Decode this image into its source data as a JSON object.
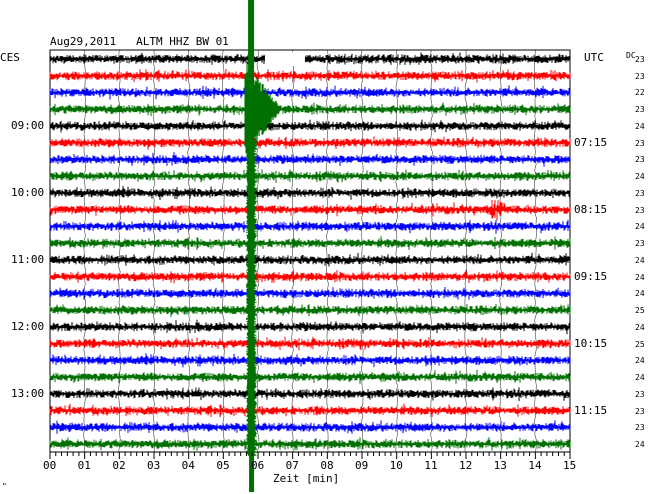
{
  "header": {
    "left_corner": "CES",
    "title": "Aug29,2011   ALTM HHZ BW 01",
    "right_corner": "UTC",
    "dc_label": "DC"
  },
  "footer": {
    "xlabel": "Zeit [min]",
    "corner_mark": "\""
  },
  "colors": {
    "trace_cycle": [
      "#000000",
      "#ff0000",
      "#0000ff",
      "#007000"
    ],
    "grid": "#000000",
    "background": "#ffffff"
  },
  "chart_data": {
    "type": "line",
    "title": "Aug29,2011   ALTM HHZ BW 01",
    "xlabel": "Zeit [min]",
    "xlim": [
      0,
      15
    ],
    "x_ticks": [
      "00",
      "01",
      "02",
      "03",
      "04",
      "05",
      "06",
      "07",
      "08",
      "09",
      "10",
      "11",
      "12",
      "13",
      "14",
      "15"
    ],
    "rows": 24,
    "row_minutes": 15,
    "left_time_labels": [
      {
        "row": 4,
        "label": "09:00"
      },
      {
        "row": 8,
        "label": "10:00"
      },
      {
        "row": 12,
        "label": "11:00"
      },
      {
        "row": 16,
        "label": "12:00"
      },
      {
        "row": 20,
        "label": "13:00"
      }
    ],
    "right_time_labels": [
      {
        "row": 5,
        "label": "07:15"
      },
      {
        "row": 9,
        "label": "08:15"
      },
      {
        "row": 13,
        "label": "09:15"
      },
      {
        "row": 17,
        "label": "10:15"
      },
      {
        "row": 21,
        "label": "11:15"
      }
    ],
    "dc_offsets": [
      "23",
      "23",
      "22",
      "23",
      "24",
      "23",
      "23",
      "24",
      "23",
      "23",
      "24",
      "23",
      "24",
      "24",
      "24",
      "25",
      "24",
      "25",
      "24",
      "24",
      "23",
      "23",
      "23",
      "24"
    ],
    "events": [
      {
        "row": 3,
        "minute": 5.8,
        "description": "large earthquake, clipped green trace"
      },
      {
        "row": 9,
        "minute": 12.9,
        "description": "local burst"
      }
    ]
  }
}
